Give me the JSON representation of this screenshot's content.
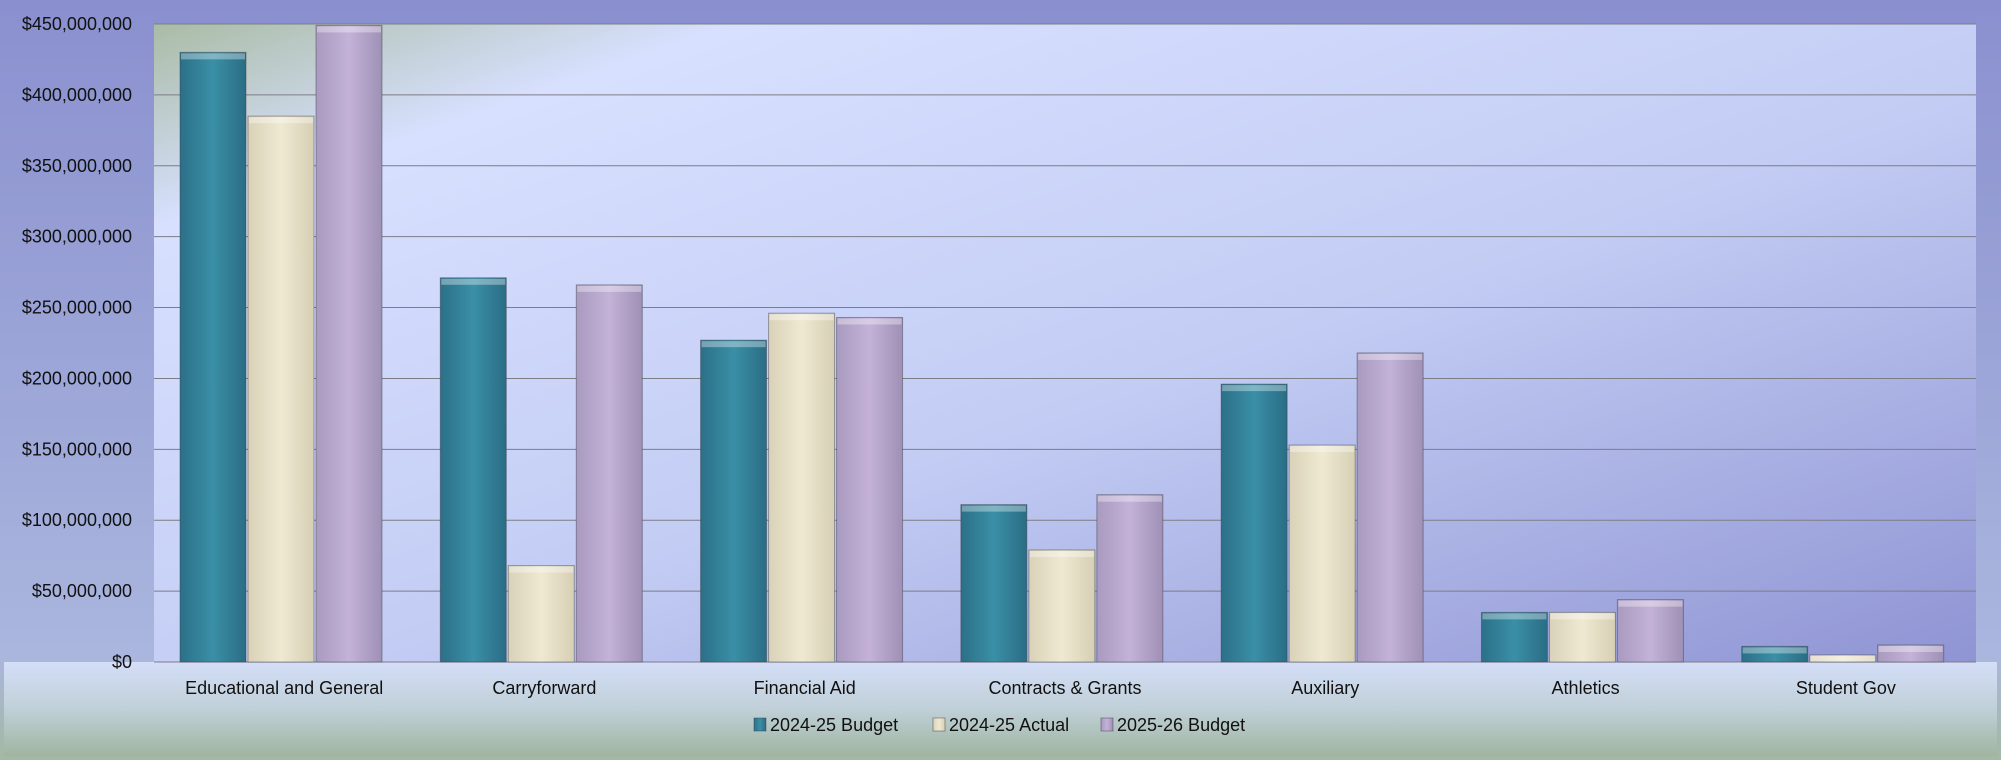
{
  "chart_data": {
    "type": "bar",
    "title": "",
    "xlabel": "",
    "ylabel": "",
    "categories": [
      "Educational and General",
      "Carryforward",
      "Financial Aid",
      "Contracts & Grants",
      "Auxiliary",
      "Athletics",
      "Student Gov"
    ],
    "series": [
      {
        "name": "2024-25 Budget",
        "values": [
          430000000,
          271000000,
          227000000,
          111000000,
          196000000,
          35000000,
          11000000
        ]
      },
      {
        "name": "2024-25 Actual",
        "values": [
          385000000,
          68000000,
          246000000,
          79000000,
          153000000,
          35000000,
          5000000
        ]
      },
      {
        "name": "2025-26 Budget",
        "values": [
          449000000,
          266000000,
          243000000,
          118000000,
          218000000,
          44000000,
          12000000
        ]
      }
    ],
    "ylim": [
      0,
      450000000
    ],
    "yticks": [
      0,
      50000000,
      100000000,
      150000000,
      200000000,
      250000000,
      300000000,
      350000000,
      400000000,
      450000000
    ],
    "ytick_labels": [
      "$0",
      "$50,000,000",
      "$100,000,000",
      "$150,000,000",
      "$200,000,000",
      "$250,000,000",
      "$300,000,000",
      "$350,000,000",
      "$400,000,000",
      "$450,000,000"
    ],
    "grid": true,
    "legend_position": "bottom",
    "colors": [
      "#3a8fa6",
      "#ede6cd",
      "#c2b0d6"
    ]
  }
}
